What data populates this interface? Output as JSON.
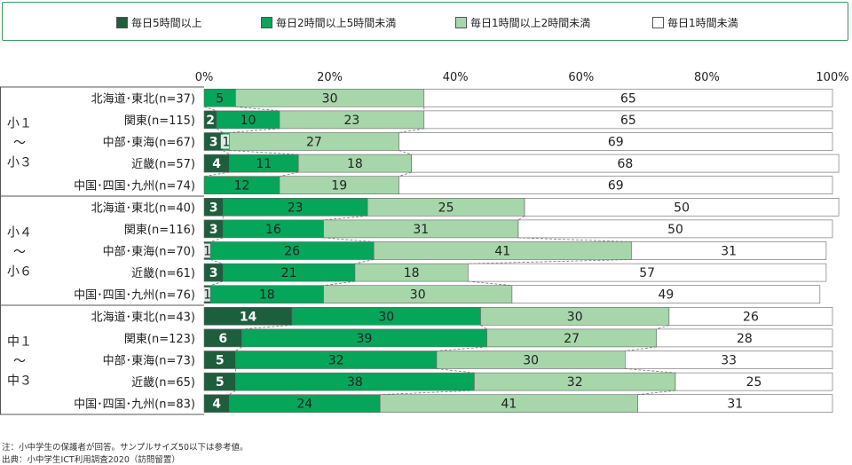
{
  "legend": [
    {
      "label": "毎日5時間以上",
      "color": "#1d5e3d"
    },
    {
      "label": "毎日2時間以上5時間未満",
      "color": "#05a55a"
    },
    {
      "label": "毎日1時間以上2時間未満",
      "color": "#a6d6aa"
    },
    {
      "label": "毎日1時間未満",
      "color": "#ffffff"
    }
  ],
  "notes": {
    "note1": "注：小中学生の保護者が回答。サンプルサイズ50以下は参考値。",
    "note2": "出典：小中学生ICT利用調査2020（訪問留置）"
  },
  "chart_data": {
    "type": "bar",
    "orientation": "horizontal",
    "stacked": true,
    "xlim": [
      0,
      100
    ],
    "x_ticks": [
      "0%",
      "20%",
      "40%",
      "60%",
      "80%",
      "100%"
    ],
    "groups": [
      {
        "label": "小1〜小3",
        "label_chars": [
          "小１",
          "〜",
          "小３"
        ]
      },
      {
        "label": "小4〜小6",
        "label_chars": [
          "小４",
          "〜",
          "小６"
        ]
      },
      {
        "label": "中1〜中3",
        "label_chars": [
          "中１",
          "〜",
          "中３"
        ]
      }
    ],
    "categories": [
      "北海道･東北(n=37)",
      "関東(n=115)",
      "中部･東海(n=67)",
      "近畿(n=57)",
      "中国･四国･九州(n=74)",
      "北海道･東北(n=40)",
      "関東(n=116)",
      "中部･東海(n=70)",
      "近畿(n=61)",
      "中国･四国･九州(n=76)",
      "北海道･東北(n=43)",
      "関東(n=123)",
      "中部･東海(n=73)",
      "近畿(n=65)",
      "中国･四国･九州(n=83)"
    ],
    "series": [
      {
        "name": "毎日5時間以上",
        "color": "#1d5e3d",
        "values": [
          0,
          2,
          3,
          4,
          0,
          3,
          3,
          1,
          3,
          1,
          14,
          6,
          5,
          5,
          4
        ]
      },
      {
        "name": "毎日2時間以上5時間未満",
        "color": "#05a55a",
        "values": [
          5,
          10,
          1,
          11,
          12,
          23,
          16,
          26,
          21,
          18,
          30,
          39,
          32,
          38,
          24
        ]
      },
      {
        "name": "毎日1時間以上2時間未満",
        "color": "#a6d6aa",
        "values": [
          30,
          23,
          27,
          18,
          19,
          25,
          31,
          41,
          18,
          30,
          30,
          27,
          30,
          32,
          41
        ]
      },
      {
        "name": "毎日1時間未満",
        "color": "#ffffff",
        "values": [
          65,
          65,
          69,
          68,
          69,
          50,
          50,
          31,
          57,
          49,
          26,
          28,
          33,
          25,
          31
        ]
      }
    ]
  }
}
